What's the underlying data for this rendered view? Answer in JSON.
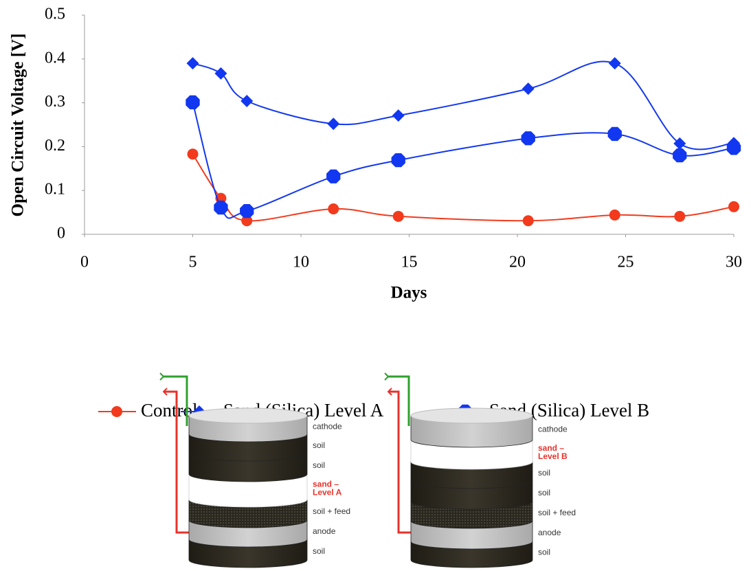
{
  "chart_data": {
    "type": "line",
    "y_label": "Open Circuit Voltage [V]",
    "x_label": "Days",
    "xlim": [
      0,
      30
    ],
    "xticks": [
      0,
      5,
      10,
      15,
      20,
      25,
      30
    ],
    "ylim": [
      0,
      0.5
    ],
    "yticks": [
      0,
      0.1,
      0.2,
      0.3,
      0.4,
      0.5
    ],
    "x": [
      5,
      6.3,
      7.5,
      11.5,
      14.5,
      20.5,
      24.5,
      27.5,
      30
    ],
    "series": [
      {
        "name": "Control",
        "color": "#f23a1d",
        "marker": "circle",
        "values": [
          0.183,
          0.082,
          0.031,
          0.058,
          0.041,
          0.031,
          0.044,
          0.041,
          0.063
        ]
      },
      {
        "name": "Sand (Silica) Level A",
        "color": "#1237f0",
        "marker": "diamond",
        "values": [
          0.39,
          0.367,
          0.304,
          0.252,
          0.271,
          0.332,
          0.39,
          0.207,
          0.208
        ]
      },
      {
        "name": "Sand (Silica) Level B",
        "color": "#1237f0",
        "marker": "octagon",
        "values": [
          0.301,
          0.061,
          0.053,
          0.132,
          0.169,
          0.219,
          0.229,
          0.18,
          0.197
        ]
      }
    ]
  },
  "diagrams": [
    {
      "labels": [
        "cathode",
        "soil",
        "soil",
        "sand –\nLevel A",
        "soil + feed",
        "anode",
        "soil"
      ]
    },
    {
      "labels": [
        "cathode",
        "sand –\nLevel B",
        "soil",
        "soil",
        "soil + feed",
        "anode",
        "soil"
      ]
    }
  ]
}
